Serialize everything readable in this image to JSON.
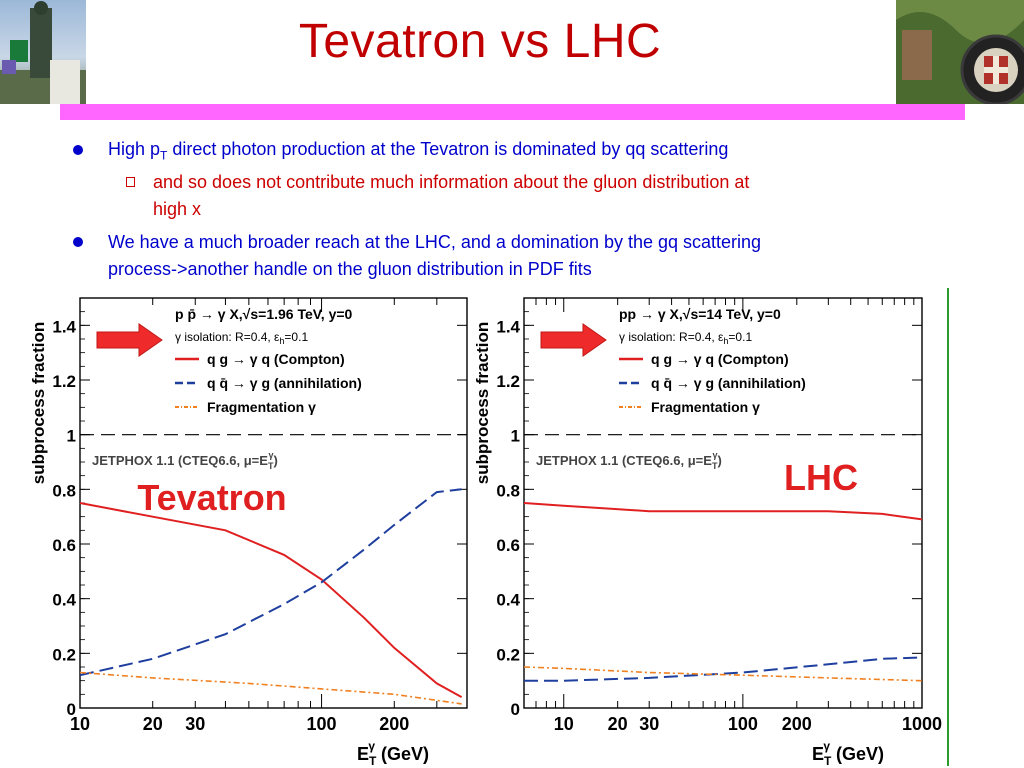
{
  "title": "Tevatron vs LHC",
  "bullets": {
    "b1_pre": "High p",
    "b1_sub": "T",
    "b1_post": " direct photon production at the Tevatron is dominated by qq scattering",
    "b1_sub1_line1": "and so does not contribute much information about the gluon distribution at",
    "b1_sub1_line2": "high x",
    "b2_line1": "We have a much broader reach at the LHC, and a domination by the gq scattering",
    "b2_line2": "process->another handle on the gluon distribution in PDF fits"
  },
  "colors": {
    "title": "#c00000",
    "bar": "#ff66ff",
    "bullet": "#0000cc",
    "sub": "#cc0000",
    "compton": "#e02020",
    "annihilation": "#1f3f9f",
    "fragmentation": "#f08020"
  },
  "chart_data": [
    {
      "type": "line",
      "x_scale": "log",
      "xlim": [
        10,
        400
      ],
      "ylim": [
        0,
        1.5
      ],
      "x_ticks": [
        "10",
        "20",
        "30",
        "100",
        "200"
      ],
      "y_ticks": [
        "0",
        "0.2",
        "0.4",
        "0.6",
        "0.8",
        "1",
        "1.2",
        "1.4"
      ],
      "ylabel": "subprocess fraction",
      "xlabel": "E",
      "xlabel_sup": "γ",
      "xlabel_sub": "T",
      "xlabel_unit": "(GeV)",
      "legend_title": "p p̄ → γ X,√s=1.96 TeV, y=0",
      "isolation": "γ isolation: R=0.4, ε",
      "isolation_sub": "h",
      "isolation_val": "=0.1",
      "annotation": "JETPHOX 1.1 (CTEQ6.6, μ=E",
      "annotation_sup": "γ",
      "annotation_sub": "T",
      "annotation_end": ")",
      "big_label": "Tevatron",
      "reference_line": 1,
      "series": [
        {
          "name": "q g → γ q (Compton)",
          "x": [
            10,
            20,
            40,
            70,
            100,
            150,
            200,
            300,
            380
          ],
          "y": [
            0.75,
            0.7,
            0.65,
            0.56,
            0.47,
            0.33,
            0.22,
            0.09,
            0.04
          ]
        },
        {
          "name": "q q̄ → γ g (annihilation)",
          "x": [
            10,
            20,
            40,
            70,
            100,
            150,
            200,
            300,
            380
          ],
          "y": [
            0.12,
            0.18,
            0.27,
            0.38,
            0.46,
            0.58,
            0.67,
            0.79,
            0.8
          ]
        },
        {
          "name": "Fragmentation γ",
          "x": [
            10,
            20,
            50,
            100,
            200,
            380
          ],
          "y": [
            0.13,
            0.11,
            0.09,
            0.07,
            0.05,
            0.015
          ]
        }
      ]
    },
    {
      "type": "line",
      "x_scale": "log",
      "xlim": [
        6,
        1000
      ],
      "ylim": [
        0,
        1.5
      ],
      "x_ticks": [
        "10",
        "20",
        "30",
        "100",
        "200",
        "1000"
      ],
      "y_ticks": [
        "0",
        "0.2",
        "0.4",
        "0.6",
        "0.8",
        "1",
        "1.2",
        "1.4"
      ],
      "ylabel": "subprocess fraction",
      "xlabel": "E",
      "xlabel_sup": "γ",
      "xlabel_sub": "T",
      "xlabel_unit": "(GeV)",
      "legend_title": "pp → γ X,√s=14 TeV, y=0",
      "isolation": "γ isolation: R=0.4, ε",
      "isolation_sub": "h",
      "isolation_val": "=0.1",
      "annotation": "JETPHOX 1.1 (CTEQ6.6, μ=E",
      "annotation_sup": "γ",
      "annotation_sub": "T",
      "annotation_end": ")",
      "big_label": "LHC",
      "reference_line": 1,
      "series": [
        {
          "name": "q g → γ q (Compton)",
          "x": [
            6,
            10,
            30,
            100,
            300,
            600,
            1000
          ],
          "y": [
            0.75,
            0.74,
            0.72,
            0.72,
            0.72,
            0.71,
            0.69
          ]
        },
        {
          "name": "q q̄ → γ g (annihilation)",
          "x": [
            6,
            10,
            30,
            100,
            300,
            600,
            1000
          ],
          "y": [
            0.1,
            0.1,
            0.11,
            0.13,
            0.16,
            0.18,
            0.185
          ]
        },
        {
          "name": "Fragmentation γ",
          "x": [
            6,
            10,
            30,
            100,
            300,
            1000
          ],
          "y": [
            0.15,
            0.145,
            0.13,
            0.12,
            0.11,
            0.1
          ]
        }
      ]
    }
  ]
}
